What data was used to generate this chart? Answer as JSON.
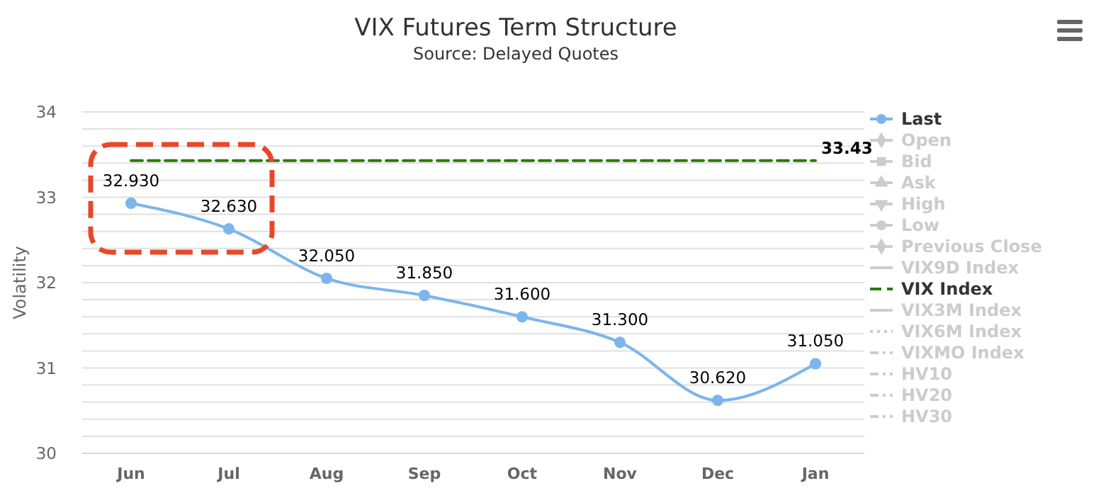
{
  "chart_data": {
    "type": "line",
    "title": "VIX Futures Term Structure",
    "subtitle": "Source: Delayed Quotes",
    "ylabel": "Volatility",
    "categories": [
      "Jun",
      "Jul",
      "Aug",
      "Sep",
      "Oct",
      "Nov",
      "Dec",
      "Jan"
    ],
    "ylim": [
      30,
      34
    ],
    "yticks": [
      30,
      {
        "value": 30.2,
        "label": null
      },
      {
        "value": 30.4,
        "label": null
      },
      {
        "value": 30.6,
        "label": null
      },
      {
        "value": 30.8,
        "label": null
      },
      31,
      {
        "value": 31.2,
        "label": null
      },
      {
        "value": 31.4,
        "label": null
      },
      {
        "value": 31.6,
        "label": null
      },
      {
        "value": 31.8,
        "label": null
      },
      32,
      {
        "value": 32.2,
        "label": null
      },
      {
        "value": 32.4,
        "label": null
      },
      {
        "value": 32.6,
        "label": null
      },
      {
        "value": 32.8,
        "label": null
      },
      33,
      {
        "value": 33.2,
        "label": null
      },
      {
        "value": 33.4,
        "label": null
      },
      {
        "value": 33.6,
        "label": null
      },
      {
        "value": 33.8,
        "label": null
      },
      34
    ],
    "grid": "y",
    "legend": "right",
    "series": [
      {
        "name": "Last",
        "color": "#7cb5ec",
        "marker": "circle",
        "values": [
          32.93,
          32.63,
          32.05,
          31.85,
          31.6,
          31.3,
          30.62,
          31.05
        ],
        "value_labels": [
          "32.930",
          "32.630",
          "32.050",
          "31.850",
          "31.600",
          "31.300",
          "30.620",
          "31.050"
        ]
      },
      {
        "name": "Open",
        "color": "#cccccc",
        "marker": "diamond",
        "values": [
          null,
          null,
          null,
          null,
          null,
          null,
          null,
          null
        ]
      },
      {
        "name": "Bid",
        "color": "#cccccc",
        "marker": "square",
        "values": [
          null,
          null,
          null,
          null,
          null,
          null,
          null,
          null
        ]
      },
      {
        "name": "Ask",
        "color": "#cccccc",
        "marker": "triangle",
        "values": [
          null,
          null,
          null,
          null,
          null,
          null,
          null,
          null
        ]
      },
      {
        "name": "High",
        "color": "#cccccc",
        "marker": "triangle-down",
        "values": [
          null,
          null,
          null,
          null,
          null,
          null,
          null,
          null
        ]
      },
      {
        "name": "Low",
        "color": "#cccccc",
        "marker": "circle",
        "values": [
          null,
          null,
          null,
          null,
          null,
          null,
          null,
          null
        ]
      },
      {
        "name": "Previous Close",
        "color": "#cccccc",
        "marker": "diamond",
        "values": [
          null,
          null,
          null,
          null,
          null,
          null,
          null,
          null
        ]
      },
      {
        "name": "VIX9D Index",
        "color": "#cccccc",
        "marker": "none",
        "values": [
          null,
          null,
          null,
          null,
          null,
          null,
          null,
          null
        ]
      },
      {
        "name": "VIX Index",
        "color": "#2b7a0b",
        "marker": "none",
        "line_style": "dashed",
        "values": [
          33.43,
          33.43,
          33.43,
          33.43,
          33.43,
          33.43,
          33.43,
          33.43
        ],
        "value_labels": [
          null,
          null,
          null,
          null,
          null,
          null,
          null,
          "33.43"
        ]
      },
      {
        "name": "VIX3M Index",
        "color": "#cccccc",
        "marker": "none",
        "values": [
          null,
          null,
          null,
          null,
          null,
          null,
          null,
          null
        ]
      },
      {
        "name": "VIX6M Index",
        "color": "#cccccc",
        "marker": "none",
        "line_style": "dotted",
        "values": [
          null,
          null,
          null,
          null,
          null,
          null,
          null,
          null
        ]
      },
      {
        "name": "VIXMO Index",
        "color": "#cccccc",
        "marker": "none",
        "line_style": "dashdot",
        "values": [
          null,
          null,
          null,
          null,
          null,
          null,
          null,
          null
        ]
      },
      {
        "name": "HV10",
        "color": "#cccccc",
        "marker": "none",
        "line_style": "dashdot",
        "values": [
          null,
          null,
          null,
          null,
          null,
          null,
          null,
          null
        ]
      },
      {
        "name": "HV20",
        "color": "#cccccc",
        "marker": "none",
        "line_style": "dashdot",
        "values": [
          null,
          null,
          null,
          null,
          null,
          null,
          null,
          null
        ]
      },
      {
        "name": "HV30",
        "color": "#cccccc",
        "marker": "none",
        "line_style": "dashdot",
        "values": [
          null,
          null,
          null,
          null,
          null,
          null,
          null,
          null
        ]
      }
    ]
  }
}
